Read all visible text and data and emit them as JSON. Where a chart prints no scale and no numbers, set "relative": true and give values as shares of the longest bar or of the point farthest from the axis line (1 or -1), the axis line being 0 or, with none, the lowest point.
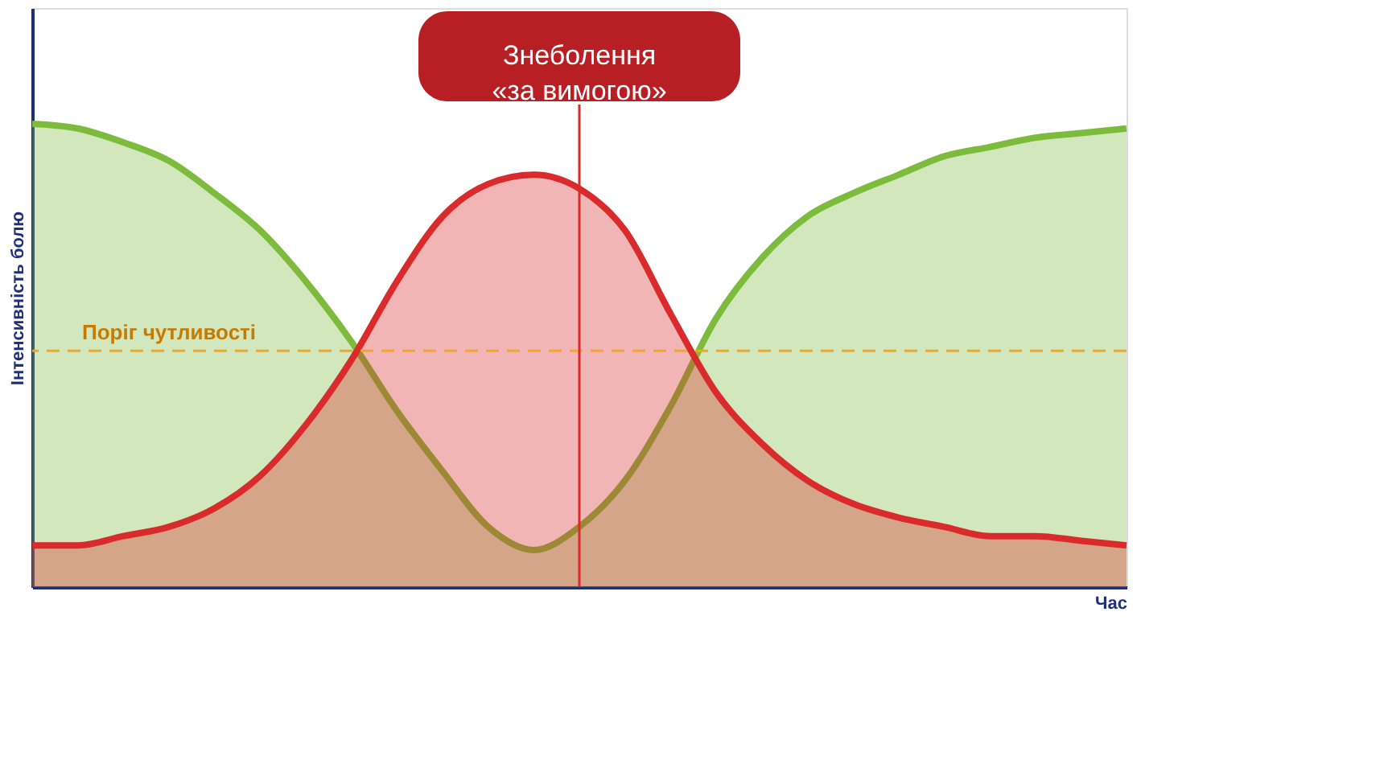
{
  "chart_data": {
    "type": "area",
    "relative": true,
    "xlabel": "Час",
    "ylabel": "Інтенсивність болю",
    "tick_labels": false,
    "categories": [
      null,
      null,
      null,
      null,
      null,
      null,
      null,
      null,
      null,
      null,
      null,
      null,
      null,
      null,
      null,
      null,
      null,
      null,
      null,
      null,
      null,
      null,
      null,
      null,
      null
    ],
    "series": [
      {
        "color": "#7dbb3c",
        "values": [
          1.0,
          0.99,
          0.96,
          0.92,
          0.85,
          0.77,
          0.66,
          0.53,
          0.38,
          0.25,
          0.13,
          0.08,
          0.13,
          0.23,
          0.39,
          0.58,
          0.71,
          0.8,
          0.85,
          0.89,
          0.93,
          0.95,
          0.97,
          0.98,
          0.99
        ]
      },
      {
        "color": "#d92b2b",
        "values": [
          0.09,
          0.09,
          0.11,
          0.13,
          0.17,
          0.24,
          0.35,
          0.49,
          0.66,
          0.8,
          0.87,
          0.89,
          0.86,
          0.77,
          0.59,
          0.42,
          0.31,
          0.23,
          0.18,
          0.15,
          0.13,
          0.11,
          0.11,
          0.1,
          0.09
        ]
      }
    ],
    "ref_lines": [
      {
        "axis": "y",
        "value": 0.51,
        "label": "Поріг чутливості",
        "color": "#f5a623",
        "line_style": "dashed"
      }
    ],
    "annotations": [
      "Знеболення\n«за вимогою»"
    ]
  }
}
